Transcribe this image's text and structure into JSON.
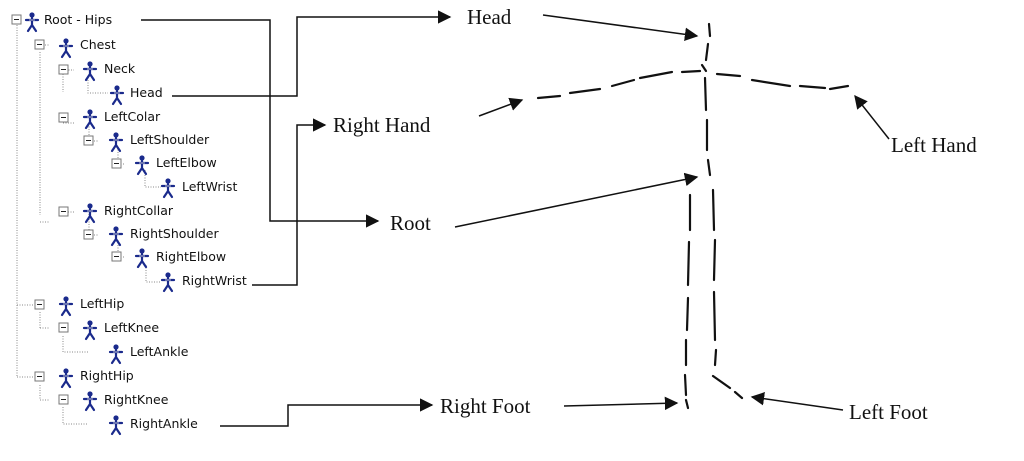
{
  "skeleton_tree": {
    "nodes": [
      {
        "id": "root-hips",
        "label": "Root - Hips"
      },
      {
        "id": "chest",
        "label": "Chest"
      },
      {
        "id": "neck",
        "label": "Neck"
      },
      {
        "id": "head",
        "label": "Head"
      },
      {
        "id": "left-colar",
        "label": "LeftColar"
      },
      {
        "id": "left-shoulder",
        "label": "LeftShoulder"
      },
      {
        "id": "left-elbow",
        "label": "LeftElbow"
      },
      {
        "id": "left-wrist",
        "label": "LeftWrist"
      },
      {
        "id": "right-collar",
        "label": "RightCollar"
      },
      {
        "id": "right-shoulder",
        "label": "RightShoulder"
      },
      {
        "id": "right-elbow",
        "label": "RightElbow"
      },
      {
        "id": "right-wrist",
        "label": "RightWrist"
      },
      {
        "id": "left-hip",
        "label": "LeftHip"
      },
      {
        "id": "left-knee",
        "label": "LeftKnee"
      },
      {
        "id": "left-ankle",
        "label": "LeftAnkle"
      },
      {
        "id": "right-hip",
        "label": "RightHip"
      },
      {
        "id": "right-knee",
        "label": "RightKnee"
      },
      {
        "id": "right-ankle",
        "label": "RightAnkle"
      }
    ]
  },
  "callouts": {
    "head": "Head",
    "right_hand": "Right Hand",
    "left_hand": "Left Hand",
    "root": "Root",
    "right_foot": "Right Foot",
    "left_foot": "Left Foot"
  },
  "colors": {
    "joint_icon": "#1a2a8c",
    "lines": "#111111",
    "tree_lines": "#888888"
  }
}
